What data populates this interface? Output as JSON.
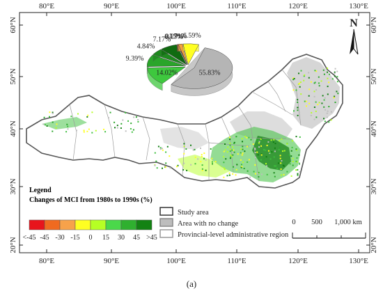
{
  "lon_ticks": [
    "80°E",
    "90°E",
    "100°E",
    "110°E",
    "120°E",
    "130°E"
  ],
  "lat_ticks": [
    "20°N",
    "30°N",
    "40°N",
    "50°N",
    "60°N"
  ],
  "north_label": "N",
  "pie": {
    "slices": [
      {
        "label": "55.83%",
        "value": 55.83,
        "color": "#b5b5b5"
      },
      {
        "label": "14.02%",
        "value": 14.02,
        "color": "#3ec83e"
      },
      {
        "label": "9.39%",
        "value": 9.39,
        "color": "#2aa52a"
      },
      {
        "label": "4.84%",
        "value": 4.84,
        "color": "#1d8a1d"
      },
      {
        "label": "7.17%",
        "value": 7.17,
        "color": "#106b10"
      },
      {
        "label": "0.17%",
        "value": 0.17,
        "color": "#dd0000"
      },
      {
        "label": "0.29%",
        "value": 0.29,
        "color": "#ff5a1a"
      },
      {
        "label": "1.71%",
        "value": 1.71,
        "color": "#f3a23b"
      },
      {
        "label": "6.59%",
        "value": 6.59,
        "color": "#ffff22"
      }
    ]
  },
  "legend": {
    "title": "Legend",
    "subtitle": "Changes of MCI from 1980s to 1990s (%)",
    "colors": [
      "#e8141c",
      "#f06a20",
      "#f7a24a",
      "#ffff22",
      "#b6ff24",
      "#4ad84a",
      "#2fb02f",
      "#138213"
    ],
    "breaks": [
      "<-45",
      "-45",
      "-30",
      "-15",
      "0",
      "15",
      "30",
      "45",
      ">45"
    ],
    "items": [
      {
        "label": "Study area",
        "fill": "#ffffff",
        "stroke": "#333333"
      },
      {
        "label": "Area with no change",
        "fill": "#bdbdbd",
        "stroke": "#888888"
      },
      {
        "label": "Provincial-level administrative region",
        "fill": "#ffffff",
        "stroke": "#999999"
      }
    ]
  },
  "scale": {
    "ticks": [
      "0",
      "500",
      "1,000 km"
    ]
  },
  "caption": "(a)"
}
